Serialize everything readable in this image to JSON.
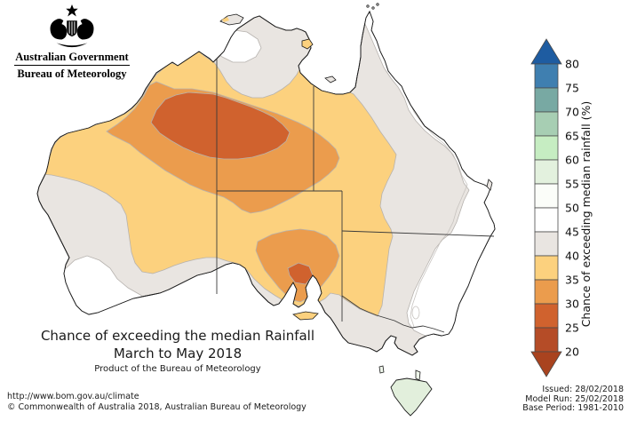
{
  "header": {
    "government": "Australian Government",
    "bureau": "Bureau of Meteorology"
  },
  "title": {
    "line1": "Chance of exceeding the median Rainfall",
    "line2": "March to May 2018",
    "line3": "Product of the Bureau of Meteorology"
  },
  "footer": {
    "url": "http://www.bom.gov.au/climate",
    "copyright": "© Commonwealth of Australia 2018, Australian Bureau of Meteorology"
  },
  "issue_info": {
    "issued": "Issued: 28/02/2018",
    "model_run": "Model Run: 25/02/2018",
    "base_period": "Base Period: 1981-2010"
  },
  "legend": {
    "axis_label": "Chance of exceeding median rainfall (%)",
    "ticks": [
      "80",
      "75",
      "70",
      "65",
      "60",
      "55",
      "50",
      "45",
      "40",
      "35",
      "30",
      "25",
      "20"
    ],
    "band_ranges": [
      "75-80",
      "70-75",
      "65-70",
      "60-65",
      "55-60",
      "50-55",
      "45-50",
      "40-45",
      "35-40",
      "30-35",
      "25-30",
      "20-25"
    ],
    "band_colors": [
      "#3f7fb0",
      "#78a9a3",
      "#a7ceb3",
      "#c6edc2",
      "#e3f1de",
      "#fbfdf9",
      "#ffffff",
      "#e9e5e1",
      "#fcd17e",
      "#eb9c4d",
      "#d0622e",
      "#b54c27"
    ],
    "above_color": "#1e5ca1",
    "below_color": "#a9431f"
  },
  "map": {
    "colors": {
      "band_40_45": "#e9e5e1",
      "band_45_50": "#ffffff",
      "band_35_40": "#fcd17e",
      "band_30_35": "#eb9c4d",
      "band_25_30": "#d0622e",
      "tasmania_50_60": "#e2efdc",
      "island_yellow": "#fcd17e",
      "island_grey": "#e9e5e1",
      "coastline": "#1a1a1a",
      "state_border": "#3a3a3a",
      "contour": "#b6b2ae"
    },
    "regions": [
      {
        "name": "mainland-base",
        "chance": "40-45%",
        "color_key": "band_40_45"
      },
      {
        "name": "interior",
        "chance": "35-40%",
        "color_key": "band_35_40"
      },
      {
        "name": "central-band",
        "chance": "30-35%",
        "color_key": "band_30_35"
      },
      {
        "name": "central-core",
        "chance": "25-30%",
        "color_key": "band_25_30"
      },
      {
        "name": "south-australia-blob",
        "chance": "30-35%",
        "color_key": "band_30_35"
      },
      {
        "name": "adelaide-patch",
        "chance": "25-30%",
        "color_key": "band_25_30"
      },
      {
        "name": "southwest-wa-patch",
        "chance": "45-50%",
        "color_key": "band_45_50"
      },
      {
        "name": "top-end-patch",
        "chance": "45-50%",
        "color_key": "band_45_50"
      },
      {
        "name": "east-coast-strip",
        "chance": "45-50%",
        "color_key": "band_45_50"
      },
      {
        "name": "tasmania",
        "chance": "50-60%",
        "color_key": "tasmania_50_60"
      }
    ]
  }
}
